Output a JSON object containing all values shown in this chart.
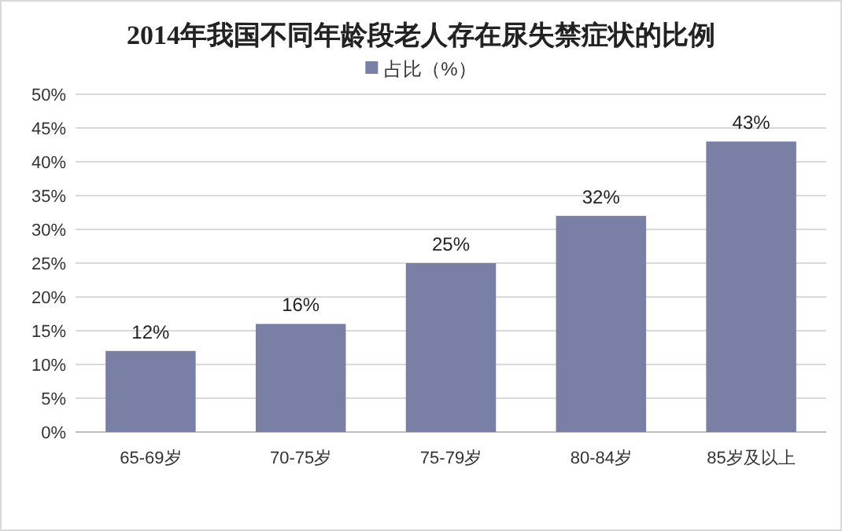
{
  "chart_data": {
    "type": "bar",
    "title": "2014年我国不同年龄段老人存在尿失禁症状的比例",
    "categories": [
      "65-69岁",
      "70-75岁",
      "75-79岁",
      "80-84岁",
      "85岁及以上"
    ],
    "series": [
      {
        "name": "占比（%）",
        "color": "#7a7fa6",
        "values": [
          12,
          16,
          25,
          32,
          43
        ]
      }
    ],
    "value_labels": [
      "12%",
      "16%",
      "25%",
      "32%",
      "43%"
    ],
    "ylim": [
      0,
      50
    ],
    "yticks": [
      {
        "value": 0,
        "label": "0%"
      },
      {
        "value": 5,
        "label": "5%"
      },
      {
        "value": 10,
        "label": "10%"
      },
      {
        "value": 15,
        "label": "15%"
      },
      {
        "value": 20,
        "label": "20%"
      },
      {
        "value": 25,
        "label": "25%"
      },
      {
        "value": 30,
        "label": "30%"
      },
      {
        "value": 35,
        "label": "35%"
      },
      {
        "value": 40,
        "label": "40%"
      },
      {
        "value": 45,
        "label": "45%"
      },
      {
        "value": 50,
        "label": "50%"
      }
    ],
    "grid": "y",
    "legend": "top"
  }
}
